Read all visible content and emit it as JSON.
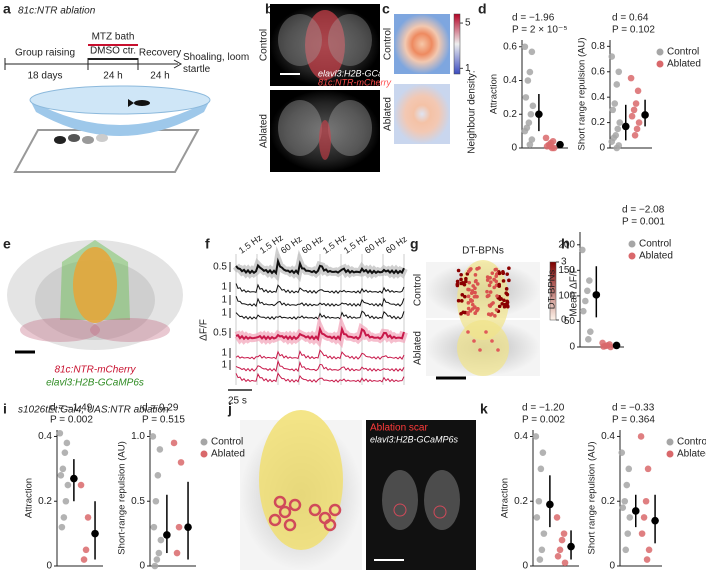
{
  "panels": {
    "a": {
      "label": "a",
      "title": "81c:NTR ablation",
      "steps": [
        "Group raising",
        "MTZ bath",
        "DMSO ctr.",
        "Recovery",
        "Shoaling, loom startle"
      ],
      "durations": [
        "18 days",
        "24 h",
        "24 h"
      ]
    },
    "b": {
      "label": "b",
      "conditions": [
        "Control",
        "Ablated"
      ],
      "markers": [
        "elavl3:H2B-GCaMP6s",
        "81c:NTR-mCherry"
      ]
    },
    "c": {
      "label": "c",
      "conditions": [
        "Control",
        "Ablated"
      ],
      "colorbar_label": "Neighbour density:",
      "colorbar_lim": [
        0.5,
        5.8
      ],
      "colorbar_ticks": [
        5,
        1
      ]
    },
    "d": {
      "label": "d"
    },
    "e": {
      "label": "e",
      "markers": [
        "81c:NTR-mCherry",
        "elavl3:H2B-GCaMP6s"
      ]
    },
    "f": {
      "label": "f",
      "rates": [
        "1.5 Hz",
        "1.5 Hz",
        "60 Hz",
        "60 Hz",
        "1.5 Hz",
        "1.5 Hz",
        "60 Hz",
        "60 Hz"
      ],
      "scale_labels": [
        0.5,
        1,
        1,
        1,
        0.5,
        1,
        1
      ],
      "ylabel": "ΔF/F",
      "time_bar": "25 s"
    },
    "g": {
      "label": "g",
      "title": "DT-BPNs",
      "conditions": [
        "Control",
        "Ablated"
      ],
      "colorbar_label": "Mean ΔF/F",
      "colorbar_lim": [
        0,
        3
      ],
      "colorbar_ticks": [
        3,
        0
      ]
    },
    "h": {
      "label": "h"
    },
    "i": {
      "label": "i",
      "title": "s1026tEt:Gal4, UAS:NTR ablation"
    },
    "j": {
      "label": "j",
      "markers": [
        "Ablation scar",
        "elavl3:H2B-GCaMP6s"
      ]
    },
    "k": {
      "label": "k"
    }
  },
  "chart_data": [
    {
      "type": "strip",
      "ylabel": "Attraction",
      "stats": [
        "d = −1.96",
        "P = 2 × 10⁻⁵"
      ],
      "ylim": [
        0,
        0.64
      ],
      "yticks": [
        0,
        0.2,
        0.4,
        0.6
      ],
      "series": [
        {
          "color": "#a6a6a6",
          "values": [
            0.6,
            0.57,
            0.45,
            0.4,
            0.3,
            0.25,
            0.2,
            0.15,
            0.12,
            0.1,
            0.05,
            0.02
          ],
          "mean": 0.2,
          "ci": [
            0.1,
            0.32
          ]
        },
        {
          "color": "#d9686b",
          "values": [
            0.06,
            0.04,
            0.03,
            0.02,
            0.01,
            0,
            0,
            0.01
          ],
          "mean": 0.02,
          "ci": [
            0,
            0.04
          ]
        }
      ]
    },
    {
      "type": "strip",
      "ylabel": "Short range repulsion (AU)",
      "stats": [
        "d = 0.64",
        "P = 0.102"
      ],
      "ylim": [
        0,
        0.85
      ],
      "yticks": [
        0,
        0.2,
        0.4,
        0.6,
        0.8
      ],
      "legend": "right",
      "series": [
        {
          "name": "Control",
          "color": "#a6a6a6",
          "values": [
            0.72,
            0.6,
            0.5,
            0.35,
            0.3,
            0.2,
            0.15,
            0.1,
            0.08,
            0.05,
            0.02,
            0
          ],
          "mean": 0.17,
          "ci": [
            0.06,
            0.34
          ]
        },
        {
          "name": "Ablated",
          "color": "#d9686b",
          "values": [
            0.55,
            0.45,
            0.35,
            0.3,
            0.25,
            0.2,
            0.15,
            0.1
          ],
          "mean": 0.26,
          "ci": [
            0.17,
            0.38
          ]
        }
      ]
    },
    {
      "type": "strip",
      "ylabel": "DT-BPNs",
      "stats": [
        "d = −2.08",
        "P = 0.001"
      ],
      "ylim": [
        0,
        225
      ],
      "yticks": [
        0,
        50,
        100,
        150,
        200
      ],
      "legend": "right",
      "series": [
        {
          "name": "Control",
          "color": "#a6a6a6",
          "values": [
            190,
            130,
            110,
            90,
            70,
            30,
            15
          ],
          "mean": 102,
          "ci": [
            58,
            158
          ]
        },
        {
          "name": "Ablated",
          "color": "#d9686b",
          "values": [
            8,
            5,
            3,
            2,
            1,
            0
          ],
          "mean": 3,
          "ci": [
            1,
            6
          ]
        }
      ]
    },
    {
      "type": "strip",
      "ylabel": "Attraction",
      "stats": [
        "d = −1.49",
        "P = 0.002"
      ],
      "ylim": [
        0,
        0.42
      ],
      "yticks": [
        0,
        0.2,
        0.4
      ],
      "series": [
        {
          "color": "#a6a6a6",
          "values": [
            0.41,
            0.38,
            0.35,
            0.3,
            0.28,
            0.25,
            0.2,
            0.15,
            0.12
          ],
          "mean": 0.27,
          "ci": [
            0.2,
            0.33
          ]
        },
        {
          "color": "#d9686b",
          "values": [
            0.25,
            0.15,
            0.05,
            0.02
          ],
          "mean": 0.1,
          "ci": [
            0.02,
            0.2
          ]
        }
      ]
    },
    {
      "type": "strip",
      "ylabel": "Short-range repulsion (AU)",
      "stats": [
        "d = 0.29",
        "P = 0.515"
      ],
      "ylim": [
        0,
        1.05
      ],
      "yticks": [
        0,
        0.5,
        {
          "value": 1,
          "label": "1.0"
        }
      ],
      "legend": "right",
      "series": [
        {
          "name": "Control",
          "color": "#a6a6a6",
          "values": [
            1,
            0.9,
            0.7,
            0.5,
            0.3,
            0.2,
            0.1,
            0.05,
            0
          ],
          "mean": 0.24,
          "ci": [
            0.1,
            0.55
          ]
        },
        {
          "name": "Ablated",
          "color": "#d9686b",
          "values": [
            0.95,
            0.8,
            0.3,
            0.1
          ],
          "mean": 0.3,
          "ci": [
            0.05,
            0.65
          ]
        }
      ]
    },
    {
      "type": "strip",
      "ylabel": "Attraction",
      "stats": [
        "d = −1.20",
        "P = 0.002"
      ],
      "ylim": [
        0,
        0.42
      ],
      "yticks": [
        0,
        0.2,
        0.4
      ],
      "series": [
        {
          "color": "#a6a6a6",
          "values": [
            0.4,
            0.35,
            0.3,
            0.2,
            0.15,
            0.1,
            0.05,
            0.02
          ],
          "mean": 0.19,
          "ci": [
            0.12,
            0.28
          ]
        },
        {
          "color": "#d9686b",
          "values": [
            0.15,
            0.1,
            0.08,
            0.05,
            0.03,
            0.01
          ],
          "mean": 0.06,
          "ci": [
            0.02,
            0.11
          ]
        }
      ]
    },
    {
      "type": "strip",
      "ylabel": "Short range repulsion (AU)",
      "stats": [
        "d = −0.33",
        "P = 0.364"
      ],
      "ylim": [
        0,
        0.42
      ],
      "yticks": [
        0,
        0.2,
        0.4
      ],
      "legend": "right",
      "series": [
        {
          "name": "Control",
          "color": "#a6a6a6",
          "values": [
            0.35,
            0.3,
            0.25,
            0.2,
            0.18,
            0.15,
            0.1,
            0.05
          ],
          "mean": 0.17,
          "ci": [
            0.12,
            0.22
          ]
        },
        {
          "name": "Ablated",
          "color": "#d9686b",
          "values": [
            0.4,
            0.3,
            0.2,
            0.15,
            0.1,
            0.05,
            0.02
          ],
          "mean": 0.14,
          "ci": [
            0.07,
            0.22
          ]
        }
      ]
    }
  ]
}
